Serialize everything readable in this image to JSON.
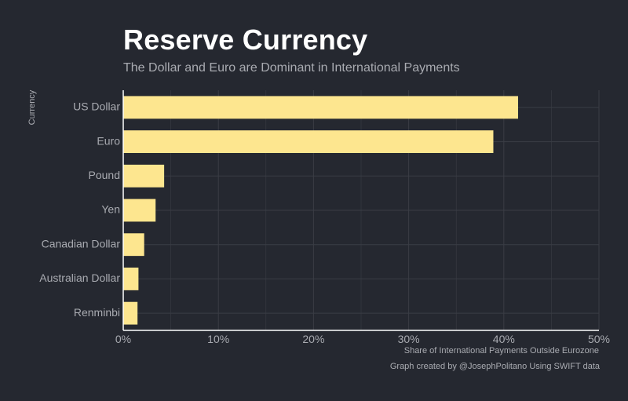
{
  "title": "Reserve Currency",
  "subtitle": "The Dollar and Euro are Dominant in International Payments",
  "caption": "Graph created by @JosephPolitano Using SWIFT data",
  "colors": {
    "background": "#252830",
    "bar": "#fde68f",
    "grid": "#3a3d45",
    "axis": "#ffffff",
    "text": "#a9abb1"
  },
  "chart_data": {
    "type": "bar",
    "orientation": "horizontal",
    "categories": [
      "US Dollar",
      "Euro",
      "Pound",
      "Yen",
      "Canadian Dollar",
      "Australian Dollar",
      "Renminbi"
    ],
    "values": [
      41.5,
      38.9,
      4.3,
      3.4,
      2.2,
      1.6,
      1.5
    ],
    "xlabel": "Share of International Payments Outside Eurozone",
    "ylabel": "Currency",
    "xlim": [
      0,
      50
    ],
    "xticks": [
      "0%",
      "10%",
      "20%",
      "30%",
      "40%",
      "50%"
    ],
    "grid": true
  }
}
